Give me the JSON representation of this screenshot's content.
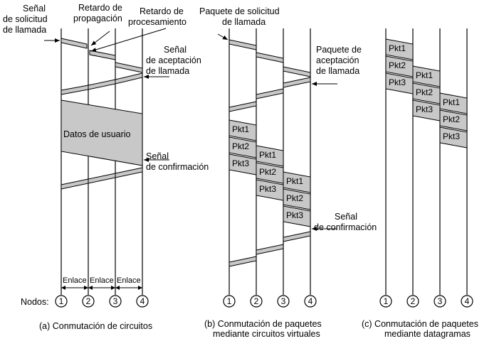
{
  "labels": {
    "senal_solicitud_1": "Señal",
    "senal_solicitud_2": "de solicitud",
    "senal_solicitud_3": "de llamada",
    "retardo_prop_1": "Retardo de",
    "retardo_prop_2": "propagación",
    "retardo_proc_1": "Retardo de",
    "retardo_proc_2": "procesamiento",
    "senal_aceptacion_1": "Señal",
    "senal_aceptacion_2": "de aceptación",
    "senal_aceptacion_3": "de llamada",
    "datos_usuario": "Datos de usuario",
    "senal_confirmacion_a_1": "Señal",
    "senal_confirmacion_a_2": "de confirmación",
    "paquete_solicitud_1": "Paquete de solicitud",
    "paquete_solicitud_2": "de llamada",
    "paquete_aceptacion_1": "Paquete de",
    "paquete_aceptacion_2": "aceptación",
    "paquete_aceptacion_3": "de llamada",
    "senal_confirmacion_b_1": "Señal",
    "senal_confirmacion_b_2": "de confirmación",
    "enlace": "Enlace",
    "nodos": "Nodos:"
  },
  "packets": [
    "Pkt1",
    "Pkt2",
    "Pkt3"
  ],
  "nodes": [
    "1",
    "2",
    "3",
    "4"
  ],
  "captions": {
    "a": "(a) Conmutación de circuitos",
    "b_1": "(b) Conmutación de paquetes",
    "b_2": "mediante circuitos virtuales",
    "c_1": "(c) Conmutación de paquetes",
    "c_2": "mediante datagramas"
  },
  "colors": {
    "band_fill": "#c8c8c8",
    "line": "#000000",
    "background": "#ffffff"
  }
}
